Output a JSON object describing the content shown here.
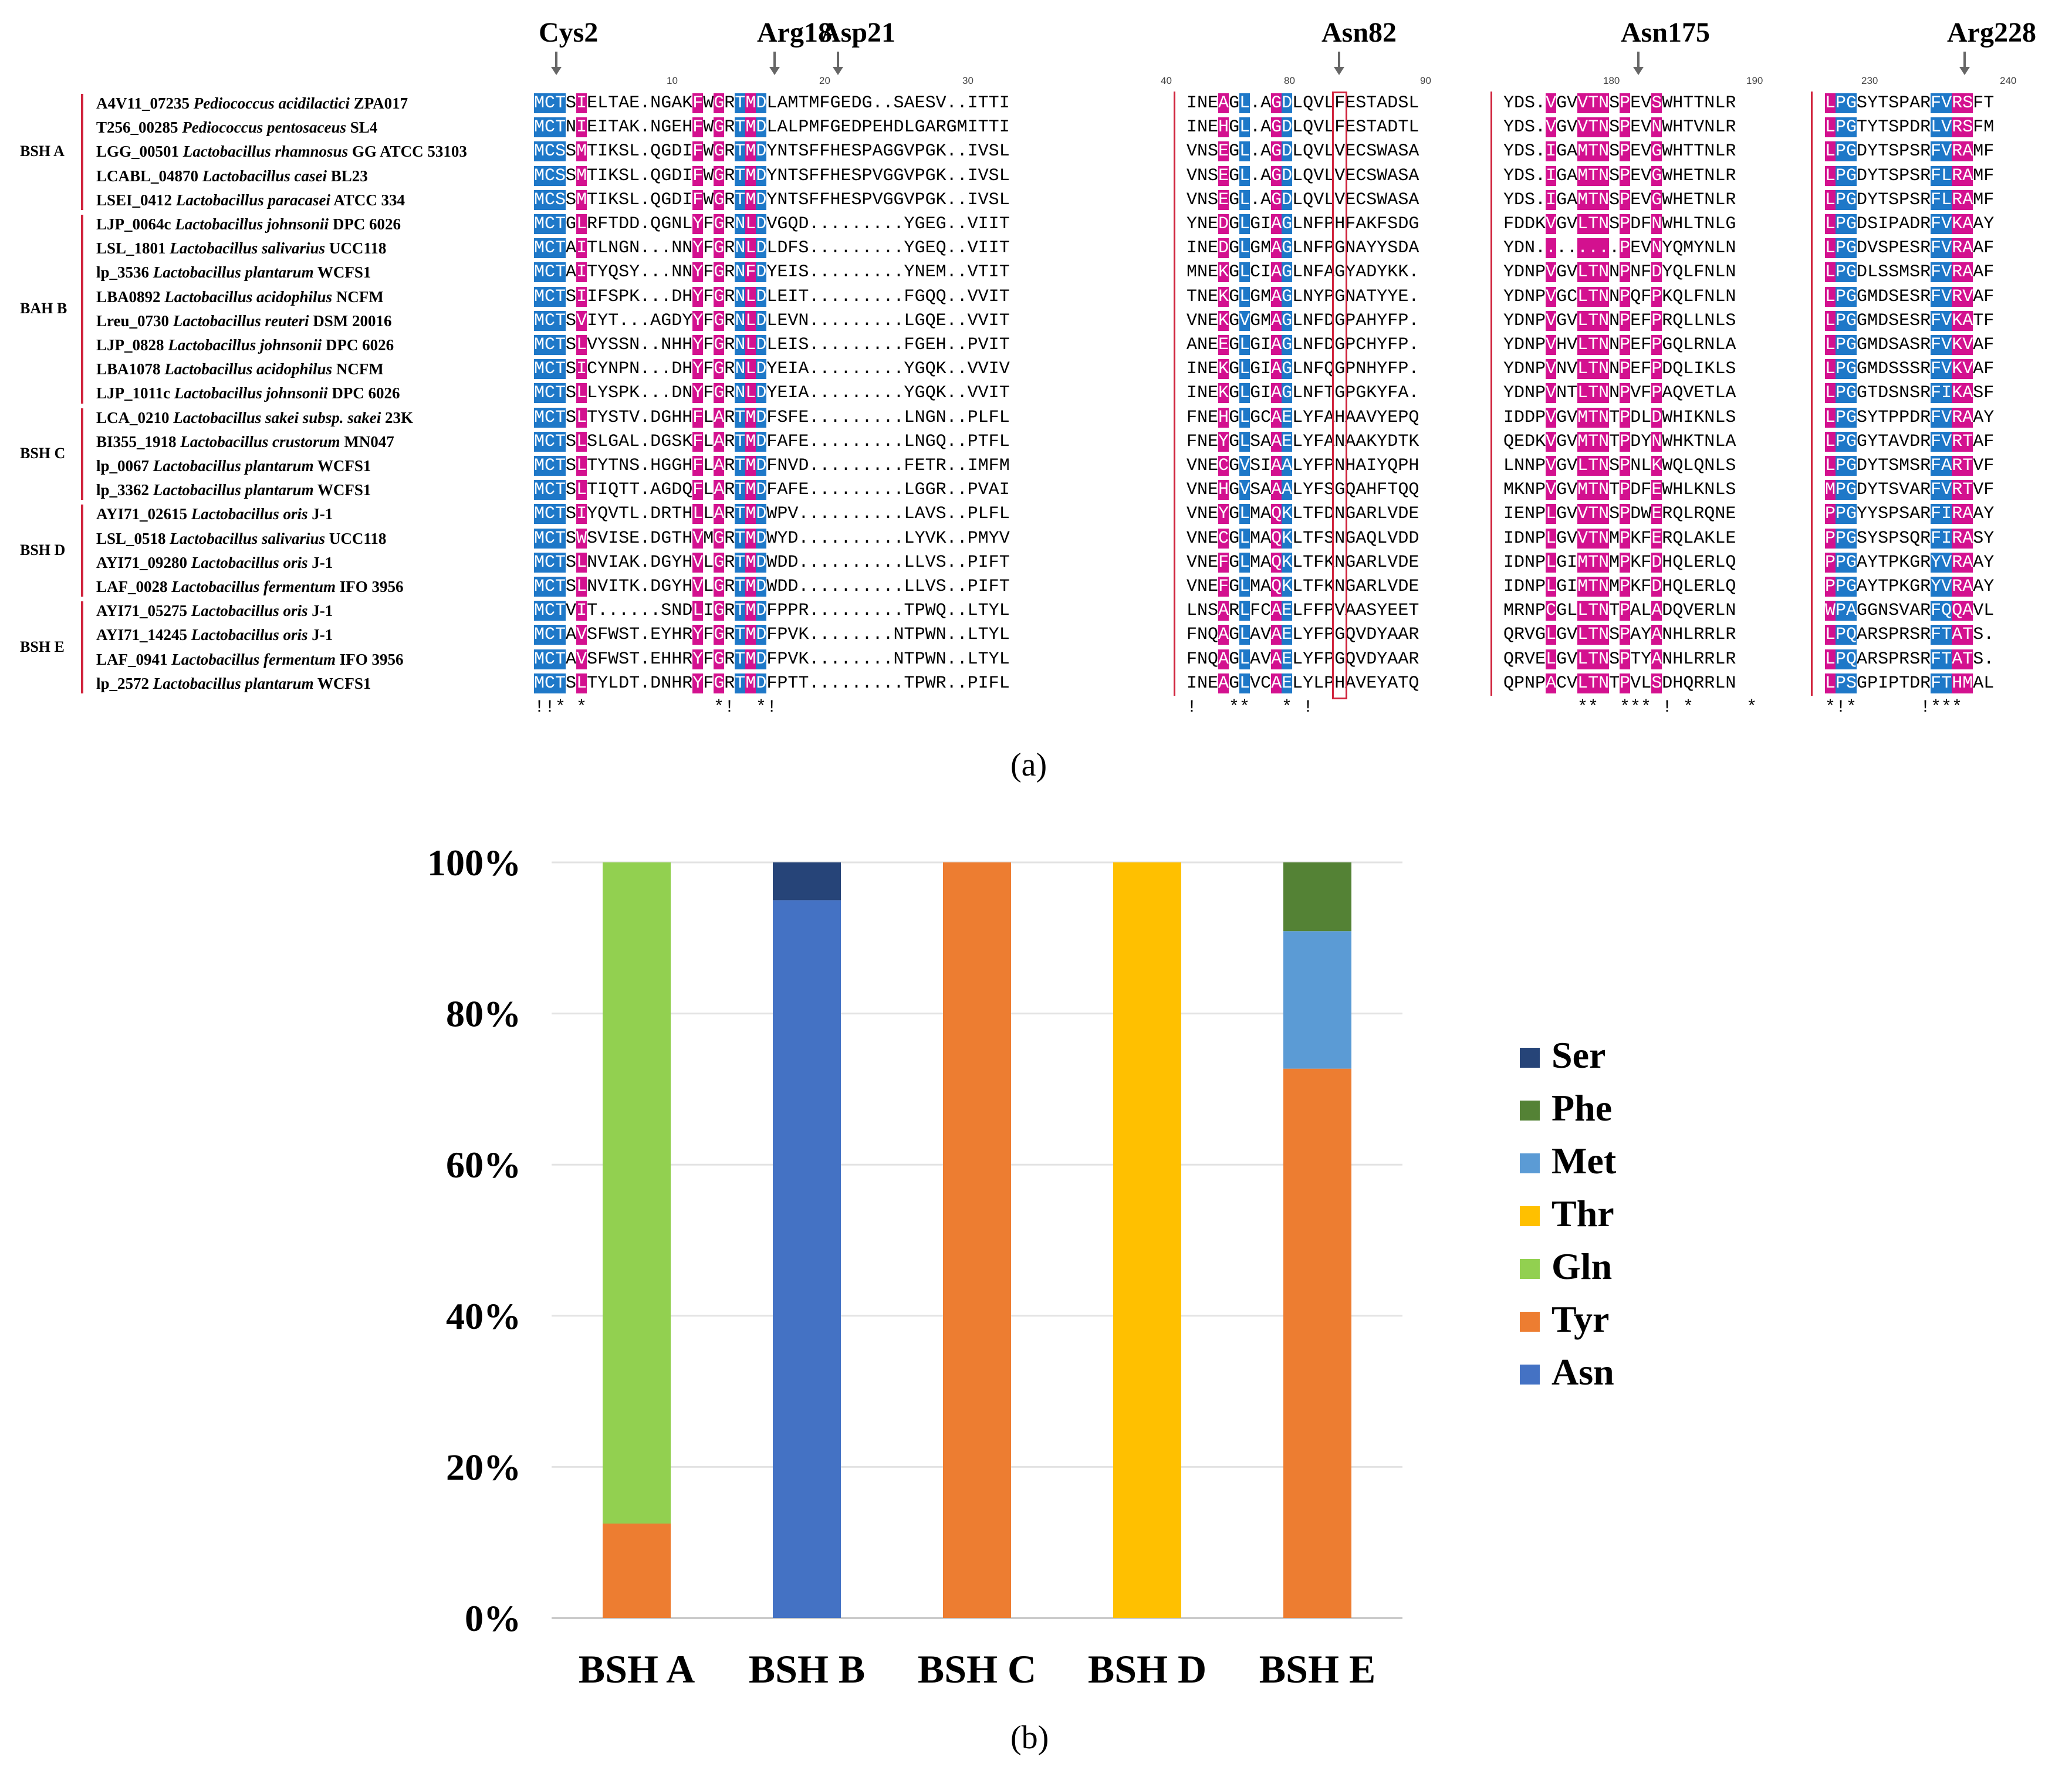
{
  "figure_a": {
    "panel_label": "(a)",
    "residue_markers": [
      {
        "label": "Cys2"
      },
      {
        "label": "Arg18"
      },
      {
        "label": "Asp21"
      },
      {
        "label": "Asn82"
      },
      {
        "label": "Asn175"
      },
      {
        "label": "Arg228"
      }
    ],
    "position_ticks": [
      "10",
      "20",
      "30",
      "40",
      "80",
      "90",
      "180",
      "190",
      "230",
      "240"
    ],
    "groups": [
      {
        "name": "BSH A",
        "rows": [
          0,
          4
        ]
      },
      {
        "name": "BAH B",
        "rows": [
          5,
          12
        ]
      },
      {
        "name": "BSH C",
        "rows": [
          13,
          16
        ]
      },
      {
        "name": "BSH D",
        "rows": [
          17,
          20
        ]
      },
      {
        "name": "BSH E",
        "rows": [
          21,
          24
        ]
      }
    ],
    "sequences": [
      {
        "id": "A4V11_07235",
        "species": "Pediococcus acidilactici",
        "strain": "ZPA017",
        "b1": "MCTSIELTAE.NGAKFWGRTMDLAMTMFGEDG..SAESV..ITTI",
        "b2": "INEAGL.AGDLQVLFESTADSL",
        "b3": "YDS.VGVVTNSPEVSWHTTNLR",
        "b4": "LPGSYTSPARFVRSFT"
      },
      {
        "id": "T256_00285",
        "species": "Pediococcus pentosaceus",
        "strain": "SL4",
        "b1": "MCTNIEITAK.NGEHFWGRTMDLALPMFGEDPEHDLGARGMITTI",
        "b2": "INEHGL.AGDLQVLFESTADTL",
        "b3": "YDS.VGVVTNSPEVNWHTVNLR",
        "b4": "LPGTYTSPDRLVRSFM"
      },
      {
        "id": "LGG_00501",
        "species": "Lactobacillus rhamnosus",
        "strain": "GG ATCC 53103",
        "b1": "MCSSMTIKSL.QGDIFWGRTMDYNTSFFHESPAGGVPGK..IVSL",
        "b2": "VNSEGL.AGDLQVLVECSWASA",
        "b3": "YDS.IGAMTNSPEVGWHTTNLR",
        "b4": "LPGDYTSPSRFVRAMF"
      },
      {
        "id": "LCABL_04870",
        "species": "Lactobacillus casei",
        "strain": "BL23",
        "b1": "MCSSMTIKSL.QGDIFWGRTMDYNTSFFHESPVGGVPGK..IVSL",
        "b2": "VNSEGL.AGDLQVLVECSWASA",
        "b3": "YDS.IGAMTNSPEVGWHETNLR",
        "b4": "LPGDYTSPSRFLRAMF"
      },
      {
        "id": "LSEI_0412",
        "species": "Lactobacillus paracasei",
        "strain": "ATCC 334",
        "b1": "MCSSMTIKSL.QGDIFWGRTMDYNTSFFHESPVGGVPGK..IVSL",
        "b2": "VNSEGL.AGDLQVLVECSWASA",
        "b3": "YDS.IGAMTNSPEVGWHETNLR",
        "b4": "LPGDYTSPSRFLRAMF"
      },
      {
        "id": "LJP_0064c",
        "species": "Lactobacillus johnsonii",
        "strain": "DPC 6026",
        "b1": "MCTGLRFTDD.QGNLYFGRNLDVGQD.........YGEG..VIIT",
        "b2": "YNEDGLGIAGLNFPHFAKFSDG",
        "b3": "FDDKVGVLTNSPDFNWHLTNLG",
        "b4": "LPGDSIPADRFVKAAY"
      },
      {
        "id": "LSL_1801",
        "species": "Lactobacillus salivarius",
        "strain": "UCC118",
        "b1": "MCTAITLNGN...NNYFGRNLDLDFS.........YGEQ..VIIT",
        "b2": "INEDGLGMAGLNFPGNAYYSDA",
        "b3": "YDN........PEVNYQMYNLN",
        "b4": "LPGDVSPESRFVRAAF"
      },
      {
        "id": "lp_3536",
        "species": "Lactobacillus plantarum",
        "strain": "WCFS1",
        "b1": "MCTAITYQSY...NNYFGRNFDYEIS.........YNEM..VTIT",
        "b2": "MNEKGLCIAGLNFAGYADYKK.",
        "b3": "YDNPVGVLTNNPNFDYQLFNLN",
        "b4": "LPGDLSSMSRFVRAAF"
      },
      {
        "id": "LBA0892",
        "species": "Lactobacillus acidophilus",
        "strain": "NCFM",
        "b1": "MCTSIIFSPK...DHYFGRNLDLEIT.........FGQQ..VVIT",
        "b2": "TNEKGLGMAGLNYPGNATYYE.",
        "b3": "YDNPVGCLTNNPQFPKQLFNLN",
        "b4": "LPGGMDSESRFVRVAF"
      },
      {
        "id": "Lreu_0730",
        "species": "Lactobacillus reuteri",
        "strain": "DSM 20016",
        "b1": "MCTSVIYT...AGDYYFGRNLDLEVN.........LGQE..VVIT",
        "b2": "VNEKGVGMAGLNFDGPAHYFP.",
        "b3": "YDNPVGVLTNNPEFPRQLLNLS",
        "b4": "LPGGMDSESRFVKATF"
      },
      {
        "id": "LJP_0828",
        "species": "Lactobacillus johnsonii",
        "strain": "DPC 6026",
        "b1": "MCTSLVYSSN..NHHYFGRNLDLEIS.........FGEH..PVIT",
        "b2": "ANEEGLGIAGLNFDGPCHYFP.",
        "b3": "YDNPVHVLTNNPEFPGQLRNLA",
        "b4": "LPGGMDSASRFVKVAF"
      },
      {
        "id": "LBA1078",
        "species": "Lactobacillus acidophilus",
        "strain": "NCFM",
        "b1": "MCTSICYNPN...DHYFGRNLDYEIA.........YGQK..VVIV",
        "b2": "INEKGLGIAGLNFQGPNHYFP.",
        "b3": "YDNPVNVLTNNPEFPDQLIKLS",
        "b4": "LPGGMDSSSRFVKVAF"
      },
      {
        "id": "LJP_1011c",
        "species": "Lactobacillus johnsonii",
        "strain": "DPC 6026",
        "b1": "MCTSLLYSPK...DNYFGRNLDYEIA.........YGQK..VVIT",
        "b2": "INEKGLGIAGLNFTGPGKYFA.",
        "b3": "YDNPVNTLTNNPVFPAQVETLA",
        "b4": "LPGGTDSNSRFIKASF"
      },
      {
        "id": "LCA_0210",
        "species": "Lactobacillus sakei subsp. sakei",
        "strain": "23K",
        "b1": "MCTSLTYSTV.DGHHFLARTMDFSFE.........LNGN..PLFL",
        "b2": "FNEHGLGCAELYFAHAAVYEPQ",
        "b3": "IDDPVGVMTNTPDLDWHIKNLS",
        "b4": "LPGSYTPPDRFVRAAY"
      },
      {
        "id": "BI355_1918",
        "species": "Lactobacillus crustorum",
        "strain": "MN047",
        "b1": "MCTSLSLGAL.DGSKFLARTMDFAFE.........LNGQ..PTFL",
        "b2": "FNEYGLSAAELYFANAAKYDTK",
        "b3": "QEDKVGVMTNTPDYNWHKTNLA",
        "b4": "LPGGYTAVDRFVRTAF"
      },
      {
        "id": "lp_0067",
        "species": "Lactobacillus plantarum",
        "strain": "WCFS1",
        "b1": "MCTSLTYTNS.HGGHFLARTMDFNVD.........FETR..IMFM",
        "b2": "VNECGVSIAALYFPNHAIYQPH",
        "b3": "LNNPVGVLTNSPNLKWQLQNLS",
        "b4": "LPGDYTSMSRFARTVF"
      },
      {
        "id": "lp_3362",
        "species": "Lactobacillus plantarum",
        "strain": "WCFS1",
        "b1": "MCTSLTIQTT.AGDQFLARTMDFAFE.........LGGR..PVAI",
        "b2": "VNEHGVSAAALYFSGQAHFTQQ",
        "b3": "MKNPVGVMTNTPDFEWHLKNLS",
        "b4": "MPGDYTSVARFVRTVF"
      },
      {
        "id": "AYI71_02615",
        "species": "Lactobacillus oris",
        "strain": "J-1",
        "b1": "MCTSIYQVTL.DRTHLLARTMDWPV..........LAVS..PLFL",
        "b2": "VNEYGLMAQKLTFDNGARLVDE",
        "b3": "IENPLGVVTNSPDWERQLRQNE",
        "b4": "PPGYYSPSARFIRAAY"
      },
      {
        "id": "LSL_0518",
        "species": "Lactobacillus salivarius",
        "strain": "UCC118",
        "b1": "MCTSWSVISE.DGTHVMGRTMDWYD..........LYVK..PMYV",
        "b2": "VNECGLMAQKLTFSNGAQLVDD",
        "b3": "IDNPLGVVTNMPKFERQLAKLE",
        "b4": "PPGSYSPSQRFIRASY"
      },
      {
        "id": "AYI71_09280",
        "species": "Lactobacillus oris",
        "strain": "J-1",
        "b1": "MCTSLNVIAK.DGYHVLGRTMDWDD..........LLVS..PIFT",
        "b2": "VNEFGLMAQKLTFKNGARLVDE",
        "b3": "IDNPLGIMTNMPKFDHQLERLQ",
        "b4": "PPGAYTPKGRYVRAAY"
      },
      {
        "id": "LAF_0028",
        "species": "Lactobacillus fermentum",
        "strain": "IFO 3956",
        "b1": "MCTSLNVITK.DGYHVLGRTMDWDD..........LLVS..PIFT",
        "b2": "VNEFGLMAQKLTFKNGARLVDE",
        "b3": "IDNPLGIMTNMPKFDHQLERLQ",
        "b4": "PPGAYTPKGRYVRAAY"
      },
      {
        "id": "AYI71_05275",
        "species": "Lactobacillus oris",
        "strain": "J-1",
        "b1": "MCTVIT......SNDLIGRTMDFPPR.........TPWQ..LTYL",
        "b2": "LNSARLFCAELFFPVAASYEET",
        "b3": "MRNPCGLLTNTPALADQVERLN",
        "b4": "WPAGGNSVARFQQAVL"
      },
      {
        "id": "AYI71_14245",
        "species": "Lactobacillus oris",
        "strain": "J-1",
        "b1": "MCTAVSFWST.EYHRYFGRTMDFPVK........NTPWN..LTYL",
        "b2": "FNQAGLAVAELYFPGQVDYAAR",
        "b3": "QRVGLGVLTNSPAYANHLRRLR",
        "b4": "LPQARSPRSRFTATS."
      },
      {
        "id": "LAF_0941",
        "species": "Lactobacillus fermentum",
        "strain": "IFO 3956",
        "b1": "MCTAVSFWST.EHHRYFGRTMDFPVK........NTPWN..LTYL",
        "b2": "FNQAGLAVAELYFPGQVDYAAR",
        "b3": "QRVELGVLTNSPTYANHLRRLR",
        "b4": "LPQARSPRSRFTATS."
      },
      {
        "id": "lp_2572",
        "species": "Lactobacillus plantarum",
        "strain": "WCFS1",
        "b1": "MCTSLTYLDT.DNHRYFGRTMDFPTT.........TPWR..PIFL",
        "b2": "INEAGLVCAELYLPHAVEYATQ",
        "b3": "QPNPACVLTNTPVLSDHQRRLN",
        "b4": "LPSGPIPTDRFTHMAL"
      }
    ],
    "conservation": {
      "b1": "!!* *            *!  *!",
      "b2": "!   **   * !",
      "b3": "       **  *** ! *     *",
      "b4": "*!*      !***"
    },
    "colors": {
      "blue": "#1e78c8",
      "magenta": "#d3118f",
      "separator": "#d0243d"
    }
  },
  "figure_b": {
    "panel_label": "(b)",
    "chart_data": {
      "type": "bar",
      "stacked": true,
      "title": "",
      "xlabel": "",
      "ylabel": "",
      "ylim": [
        0,
        100
      ],
      "yticks": [
        "0%",
        "20%",
        "40%",
        "60%",
        "80%",
        "100%"
      ],
      "categories": [
        "BSH A",
        "BSH B",
        "BSH C",
        "BSH D",
        "BSH E"
      ],
      "series": [
        {
          "name": "Asn",
          "color": "#4472c4",
          "values": [
            0,
            95,
            0,
            0,
            0
          ]
        },
        {
          "name": "Tyr",
          "color": "#ed7d31",
          "values": [
            12.5,
            0,
            100,
            0,
            72.7
          ]
        },
        {
          "name": "Gln",
          "color": "#92d050",
          "values": [
            87.5,
            0,
            0,
            0,
            0
          ]
        },
        {
          "name": "Thr",
          "color": "#ffc000",
          "values": [
            0,
            0,
            0,
            100,
            0
          ]
        },
        {
          "name": "Met",
          "color": "#5b9bd5",
          "values": [
            0,
            0,
            0,
            0,
            18.2
          ]
        },
        {
          "name": "Phe",
          "color": "#548235",
          "values": [
            0,
            0,
            0,
            0,
            9.1
          ]
        },
        {
          "name": "Ser",
          "color": "#264478",
          "values": [
            0,
            5,
            0,
            0,
            0
          ]
        }
      ],
      "legend_order": [
        "Ser",
        "Phe",
        "Met",
        "Thr",
        "Gln",
        "Tyr",
        "Asn"
      ],
      "legend_position": "right"
    }
  }
}
